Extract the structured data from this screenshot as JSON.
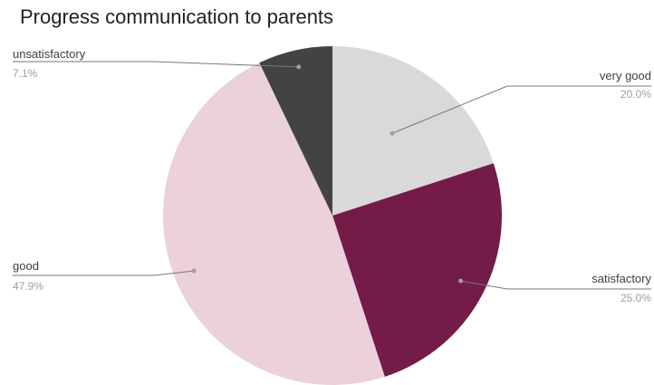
{
  "chart_data": {
    "type": "pie",
    "title": "Progress communication to parents",
    "slices": [
      {
        "label": "very good",
        "value": 20.0,
        "display": "20.0%",
        "color": "#d9d9d9"
      },
      {
        "label": "satisfactory",
        "value": 25.0,
        "display": "25.0%",
        "color": "#741b47"
      },
      {
        "label": "good",
        "value": 47.9,
        "display": "47.9%",
        "color": "#ead1dc"
      },
      {
        "label": "unsatisfactory",
        "value": 7.1,
        "display": "7.1%",
        "color": "#434343"
      }
    ],
    "start_angle_deg": 0,
    "direction": "clockwise",
    "labels": "outside-with-leader-lines"
  }
}
